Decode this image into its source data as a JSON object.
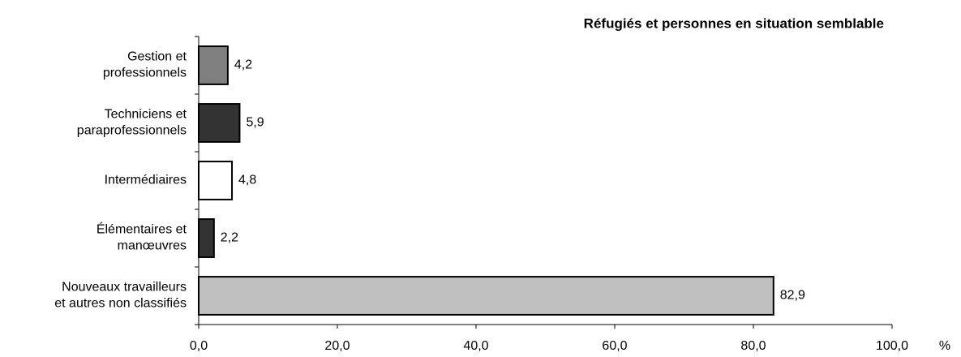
{
  "chart_data": {
    "type": "hbar",
    "title": "Réfugiés et personnes en situation semblable",
    "categories": [
      "Gestion et\nprofessionnels",
      "Techniciens et\nparaprofessionnels",
      "Intermédiaires",
      "Élémentaires et\nmanœuvres",
      "Nouveaux travailleurs\net autres non classifiés"
    ],
    "values": [
      4.2,
      5.9,
      4.8,
      2.2,
      82.9
    ],
    "value_labels": [
      "4,2",
      "5,9",
      "4,8",
      "2,2",
      "82,9"
    ],
    "colors": [
      "#808080",
      "#333333",
      "#ffffff",
      "#333333",
      "#c0c0c0"
    ],
    "xlim": [
      0,
      100
    ],
    "xticks": [
      {
        "value": 0,
        "label": "0,0"
      },
      {
        "value": 20,
        "label": "20,0"
      },
      {
        "value": 40,
        "label": "40,0"
      },
      {
        "value": 60,
        "label": "60,0"
      },
      {
        "value": 80,
        "label": "80,0"
      },
      {
        "value": 100,
        "label": "100,0"
      }
    ],
    "x_label": "%"
  }
}
